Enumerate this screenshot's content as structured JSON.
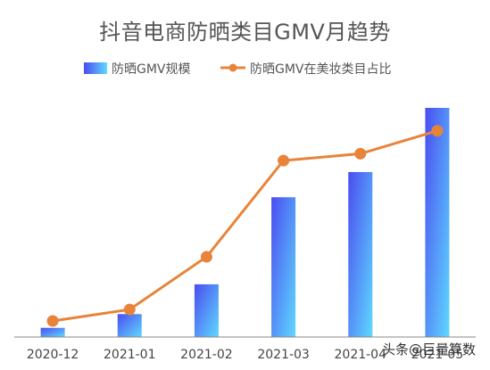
{
  "chart_data": {
    "type": "bar",
    "title": "抖音电商防晒类目GMV月趋势",
    "categories": [
      "2020-12",
      "2021-01",
      "2021-02",
      "2021-03",
      "2021-04",
      "2021-05"
    ],
    "series": [
      {
        "name": "防晒GMV规模",
        "type": "bar",
        "values": [
          4,
          10,
          23,
          61,
          72,
          100
        ]
      },
      {
        "name": "防晒GMV在美妆类目占比",
        "type": "line",
        "values": [
          7,
          12,
          35,
          77,
          80,
          90
        ]
      }
    ],
    "ylim": [
      0,
      100
    ],
    "grid": false,
    "legend": "top-center",
    "colors": {
      "bar_top": "#4a4df0",
      "bar_bottom": "#5fd8ff",
      "line": "#e8843a",
      "axis": "#888888"
    }
  },
  "watermark": "头条@巨量算数"
}
